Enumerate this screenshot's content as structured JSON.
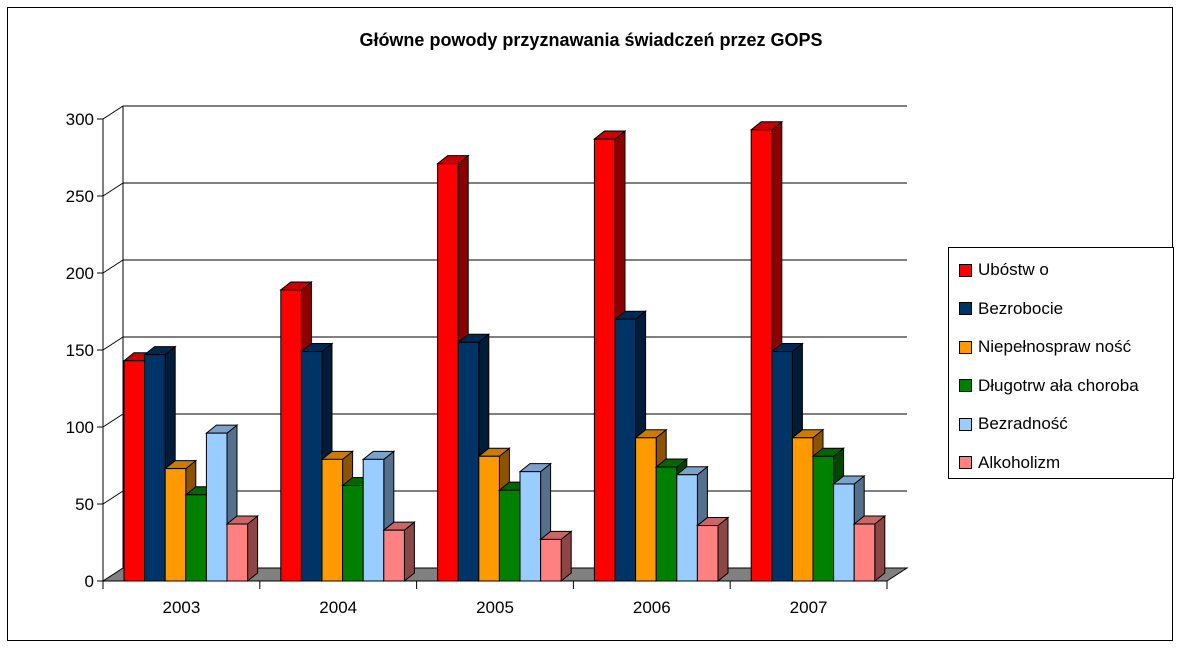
{
  "chart_data": {
    "type": "bar",
    "title": "Główne powody przyznawania świadczeń przez GOPS",
    "xlabel": "",
    "ylabel": "",
    "categories": [
      "2003",
      "2004",
      "2005",
      "2006",
      "2007"
    ],
    "ylim": [
      0,
      300
    ],
    "yticks": [
      "0",
      "50",
      "100",
      "150",
      "200",
      "250",
      "300"
    ],
    "grid": true,
    "legend_position": "right",
    "series": [
      {
        "name": "Ubóstw o",
        "color": "#ff0000",
        "values": [
          143,
          189,
          271,
          287,
          293
        ]
      },
      {
        "name": "Bezrobocie",
        "color": "#003366",
        "values": [
          147,
          149,
          155,
          170,
          149
        ]
      },
      {
        "name": "Niepełnospraw ność",
        "color": "#ff9900",
        "values": [
          73,
          79,
          81,
          93,
          93
        ]
      },
      {
        "name": "Długotrw ała choroba",
        "color": "#008000",
        "values": [
          56,
          62,
          59,
          74,
          81
        ]
      },
      {
        "name": "Bezradność",
        "color": "#99ccff",
        "values": [
          96,
          79,
          71,
          69,
          63
        ]
      },
      {
        "name": "Alkoholizm",
        "color": "#ff8080",
        "values": [
          37,
          33,
          27,
          36,
          37
        ]
      }
    ]
  }
}
